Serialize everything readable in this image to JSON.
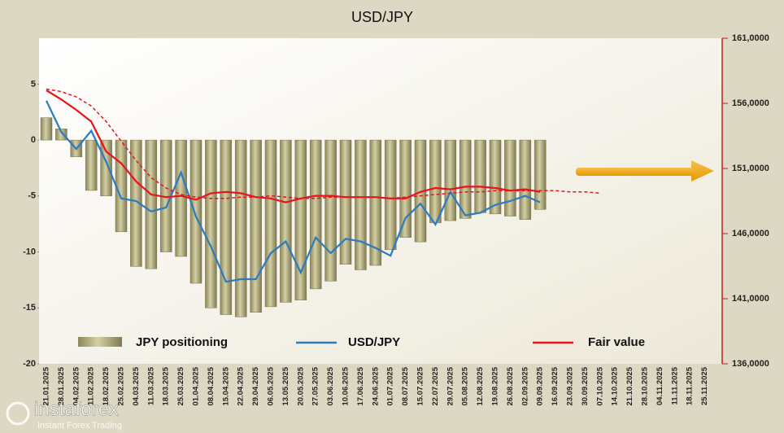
{
  "chart_data": {
    "type": "bar-line",
    "title": "USD/JPY",
    "categories": [
      "21.01.2025",
      "28.01.2025",
      "04.02.2025",
      "11.02.2025",
      "18.02.2025",
      "25.02.2025",
      "04.03.2025",
      "11.03.2025",
      "18.03.2025",
      "25.03.2025",
      "01.04.2025",
      "08.04.2025",
      "15.04.2025",
      "22.04.2025",
      "29.04.2025",
      "06.05.2025",
      "13.05.2025",
      "20.05.2025",
      "27.05.2025",
      "03.06.2025",
      "10.06.2025",
      "17.06.2025",
      "24.06.2025",
      "01.07.2025",
      "08.07.2025",
      "15.07.2025",
      "22.07.2025",
      "29.07.2025",
      "05.08.2025",
      "12.08.2025",
      "19.08.2025",
      "26.08.2025",
      "02.09.2025",
      "09.09.2025",
      "16.09.2025",
      "23.09.2025",
      "30.09.2025",
      "07.10.2025",
      "14.10.2025",
      "21.10.2025",
      "28.10.2025",
      "04.11.2025",
      "11.11.2025",
      "18.11.2025",
      "25.11.2025"
    ],
    "series": [
      {
        "name": "JPY positioning",
        "kind": "bar",
        "color": "#b3ad7f",
        "axis": "y",
        "values": [
          2.0,
          1.0,
          -1.5,
          -4.5,
          -5.0,
          -8.2,
          -11.3,
          -11.5,
          -10.0,
          -10.4,
          -12.8,
          -15.0,
          -15.6,
          -15.8,
          -15.4,
          -14.9,
          -14.5,
          -14.3,
          -13.3,
          -12.6,
          -11.1,
          -11.6,
          -11.2,
          -9.8,
          -8.7,
          -9.1,
          -7.4,
          -7.2,
          -7.0,
          -6.5,
          -6.6,
          -6.8,
          -7.1,
          -6.2,
          null,
          null,
          null,
          null,
          null,
          null,
          null,
          null,
          null,
          null,
          null
        ]
      },
      {
        "name": "USD/JPY",
        "kind": "line",
        "color": "#2a7bc0",
        "axis": "y2",
        "values": [
          156200,
          153800,
          152500,
          153900,
          151500,
          148700,
          148500,
          147700,
          148000,
          150700,
          147300,
          145000,
          142300,
          142500,
          142500,
          144500,
          145400,
          143000,
          145700,
          144500,
          145600,
          145400,
          144900,
          144300,
          147200,
          148300,
          146700,
          149200,
          147400,
          147600,
          148200,
          148500,
          148900,
          148400,
          null,
          null,
          null,
          null,
          null,
          null,
          null,
          null,
          null,
          null,
          null
        ]
      },
      {
        "name": "Fair value",
        "kind": "line",
        "color": "#e8141a",
        "axis": "y2",
        "values": [
          157000,
          156300,
          155500,
          154600,
          152300,
          151400,
          150000,
          149000,
          148800,
          148900,
          148600,
          149100,
          149200,
          149100,
          148800,
          148700,
          148400,
          148700,
          148900,
          148900,
          148800,
          148800,
          148800,
          148700,
          148700,
          149200,
          149500,
          149400,
          149600,
          149600,
          149500,
          149300,
          149400,
          149200,
          null,
          null,
          null,
          null,
          null,
          null,
          null,
          null,
          null,
          null,
          null
        ]
      },
      {
        "kind": "line",
        "dashed": true,
        "color": "#e8141a",
        "axis": "y2",
        "values": [
          157100,
          156900,
          156500,
          155800,
          154600,
          153100,
          151600,
          150300,
          149500,
          149000,
          148800,
          148700,
          148700,
          148800,
          148800,
          148900,
          148800,
          148700,
          148700,
          148800,
          148800,
          148800,
          148800,
          148700,
          148800,
          148900,
          149000,
          149100,
          149200,
          149200,
          149300,
          149300,
          149300,
          149300,
          149300,
          149200,
          149200,
          149100,
          null,
          null,
          null,
          null,
          null,
          null,
          null
        ]
      }
    ],
    "ylim": [
      -20,
      9.1
    ],
    "yticks": [
      -20,
      -15,
      -10,
      -5,
      0,
      5
    ],
    "y2lim": [
      136000,
      161000
    ],
    "y2ticks": [
      {
        "value": 136000,
        "label": "136,0000"
      },
      {
        "value": 141000,
        "label": "141,0000"
      },
      {
        "value": 146000,
        "label": "146,0000"
      },
      {
        "value": 151000,
        "label": "151,0000"
      },
      {
        "value": 156000,
        "label": "156,0000"
      },
      {
        "value": 161000,
        "label": "161,0000"
      }
    ],
    "watermark": {
      "brand": "instaforex",
      "tagline": "Instant Forex Trading"
    }
  }
}
